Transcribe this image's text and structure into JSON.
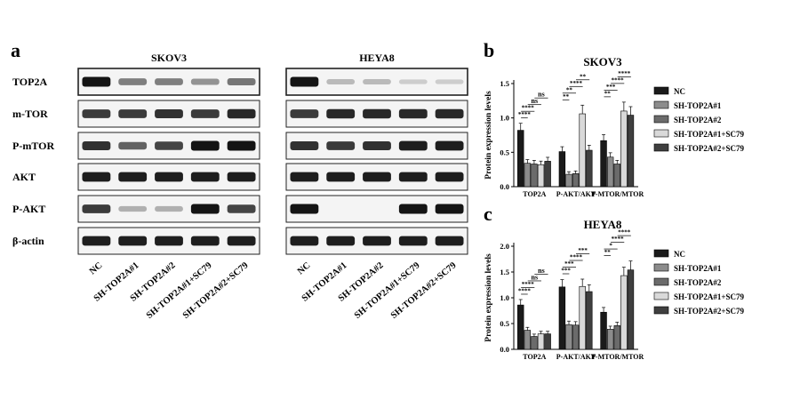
{
  "panels": {
    "a": "a",
    "b": "b",
    "c": "c"
  },
  "blot": {
    "cell_lines": [
      "SKOV3",
      "HEYA8"
    ],
    "lanes": [
      "NC",
      "SH-TOP2A#1",
      "SH-TOP2A#2",
      "SH-TOP2A#1+SC79",
      "SH-TOP2A#2+SC79"
    ],
    "proteins": [
      "TOP2A",
      "m-TOR",
      "P-mTOR",
      "AKT",
      "P-AKT",
      "β-actin"
    ],
    "intensity": {
      "SKOV3": [
        [
          1.0,
          0.45,
          0.45,
          0.35,
          0.5
        ],
        [
          0.8,
          0.8,
          0.85,
          0.8,
          0.9
        ],
        [
          0.85,
          0.6,
          0.75,
          1.0,
          1.0
        ],
        [
          0.95,
          0.95,
          0.95,
          0.95,
          0.95
        ],
        [
          0.8,
          0.2,
          0.2,
          1.0,
          0.75
        ],
        [
          0.95,
          0.95,
          0.95,
          0.95,
          0.95
        ]
      ],
      "HEYA8": [
        [
          1.0,
          0.15,
          0.15,
          0.05,
          0.05
        ],
        [
          0.8,
          0.9,
          0.9,
          0.9,
          0.9
        ],
        [
          0.85,
          0.8,
          0.85,
          0.95,
          0.95
        ],
        [
          0.95,
          0.95,
          0.95,
          0.95,
          0.95
        ],
        [
          1.0,
          0.0,
          0.0,
          1.0,
          1.0
        ],
        [
          0.95,
          0.95,
          0.95,
          0.95,
          0.95
        ]
      ]
    }
  },
  "chart_data": [
    {
      "type": "bar",
      "title": "SKOV3",
      "ylabel": "Protein expression levels",
      "ylim": [
        0,
        1.5
      ],
      "yticks": [
        "0.0",
        "0.5",
        "1.0",
        "1.5"
      ],
      "categories": [
        "TOP2A",
        "P-AKT/AKT",
        "P-MTOR/MTOR"
      ],
      "series": [
        {
          "name": "NC",
          "values": [
            0.82,
            0.51,
            0.67
          ],
          "color": "#1a1a1a"
        },
        {
          "name": "SH-TOP2A#1",
          "values": [
            0.34,
            0.18,
            0.43
          ],
          "color": "#8c8c8c"
        },
        {
          "name": "SH-TOP2A#2",
          "values": [
            0.33,
            0.19,
            0.33
          ],
          "color": "#6b6b6b"
        },
        {
          "name": "SH-TOP2A#1+SC79",
          "values": [
            0.32,
            1.06,
            1.1
          ],
          "color": "#d9d9d9"
        },
        {
          "name": "SH-TOP2A#2+SC79",
          "values": [
            0.37,
            0.53,
            1.04
          ],
          "color": "#3f3f3f"
        }
      ],
      "legend_position": "right",
      "annotations": [
        {
          "text": "****",
          "group": 0,
          "from": 0,
          "to": 1,
          "level": 0
        },
        {
          "text": "****",
          "group": 0,
          "from": 0,
          "to": 2,
          "level": 1
        },
        {
          "text": "ns",
          "group": 0,
          "from": 1,
          "to": 3,
          "level": 2
        },
        {
          "text": "ns",
          "group": 0,
          "from": 2,
          "to": 4,
          "level": 3
        },
        {
          "text": "**",
          "group": 1,
          "from": 0,
          "to": 1,
          "level": 0
        },
        {
          "text": "**",
          "group": 1,
          "from": 0,
          "to": 2,
          "level": 1
        },
        {
          "text": "****",
          "group": 1,
          "from": 1,
          "to": 3,
          "level": 2
        },
        {
          "text": "**",
          "group": 1,
          "from": 2,
          "to": 4,
          "level": 3
        },
        {
          "text": "**",
          "group": 2,
          "from": 0,
          "to": 1,
          "level": 0
        },
        {
          "text": "***",
          "group": 2,
          "from": 0,
          "to": 2,
          "level": 1
        },
        {
          "text": "****",
          "group": 2,
          "from": 1,
          "to": 3,
          "level": 2
        },
        {
          "text": "****",
          "group": 2,
          "from": 2,
          "to": 4,
          "level": 3
        }
      ]
    },
    {
      "type": "bar",
      "title": "HEYA8",
      "ylabel": "Protein expression levels",
      "ylim": [
        0,
        2.0
      ],
      "yticks": [
        "0.0",
        "0.5",
        "1.0",
        "1.5",
        "2.0"
      ],
      "categories": [
        "TOP2A",
        "P-AKT/AKT",
        "P-MTOR/MTOR"
      ],
      "series": [
        {
          "name": "NC",
          "values": [
            0.86,
            1.21,
            0.72
          ],
          "color": "#1a1a1a"
        },
        {
          "name": "SH-TOP2A#1",
          "values": [
            0.37,
            0.48,
            0.39
          ],
          "color": "#8c8c8c"
        },
        {
          "name": "SH-TOP2A#2",
          "values": [
            0.25,
            0.47,
            0.46
          ],
          "color": "#6b6b6b"
        },
        {
          "name": "SH-TOP2A#1+SC79",
          "values": [
            0.3,
            1.22,
            1.43
          ],
          "color": "#d9d9d9"
        },
        {
          "name": "SH-TOP2A#2+SC79",
          "values": [
            0.3,
            1.12,
            1.54
          ],
          "color": "#3f3f3f"
        }
      ],
      "legend_position": "right",
      "annotations": [
        {
          "text": "****",
          "group": 0,
          "from": 0,
          "to": 1,
          "level": 0
        },
        {
          "text": "****",
          "group": 0,
          "from": 0,
          "to": 2,
          "level": 1
        },
        {
          "text": "ns",
          "group": 0,
          "from": 1,
          "to": 3,
          "level": 2
        },
        {
          "text": "ns",
          "group": 0,
          "from": 2,
          "to": 4,
          "level": 3
        },
        {
          "text": "***",
          "group": 1,
          "from": 0,
          "to": 1,
          "level": 0
        },
        {
          "text": "***",
          "group": 1,
          "from": 0,
          "to": 2,
          "level": 1
        },
        {
          "text": "****",
          "group": 1,
          "from": 1,
          "to": 3,
          "level": 2
        },
        {
          "text": "***",
          "group": 1,
          "from": 2,
          "to": 4,
          "level": 3
        },
        {
          "text": "**",
          "group": 2,
          "from": 0,
          "to": 1,
          "level": 0
        },
        {
          "text": "*",
          "group": 2,
          "from": 0,
          "to": 2,
          "level": 1
        },
        {
          "text": "****",
          "group": 2,
          "from": 1,
          "to": 3,
          "level": 2
        },
        {
          "text": "****",
          "group": 2,
          "from": 2,
          "to": 4,
          "level": 3
        }
      ]
    }
  ]
}
